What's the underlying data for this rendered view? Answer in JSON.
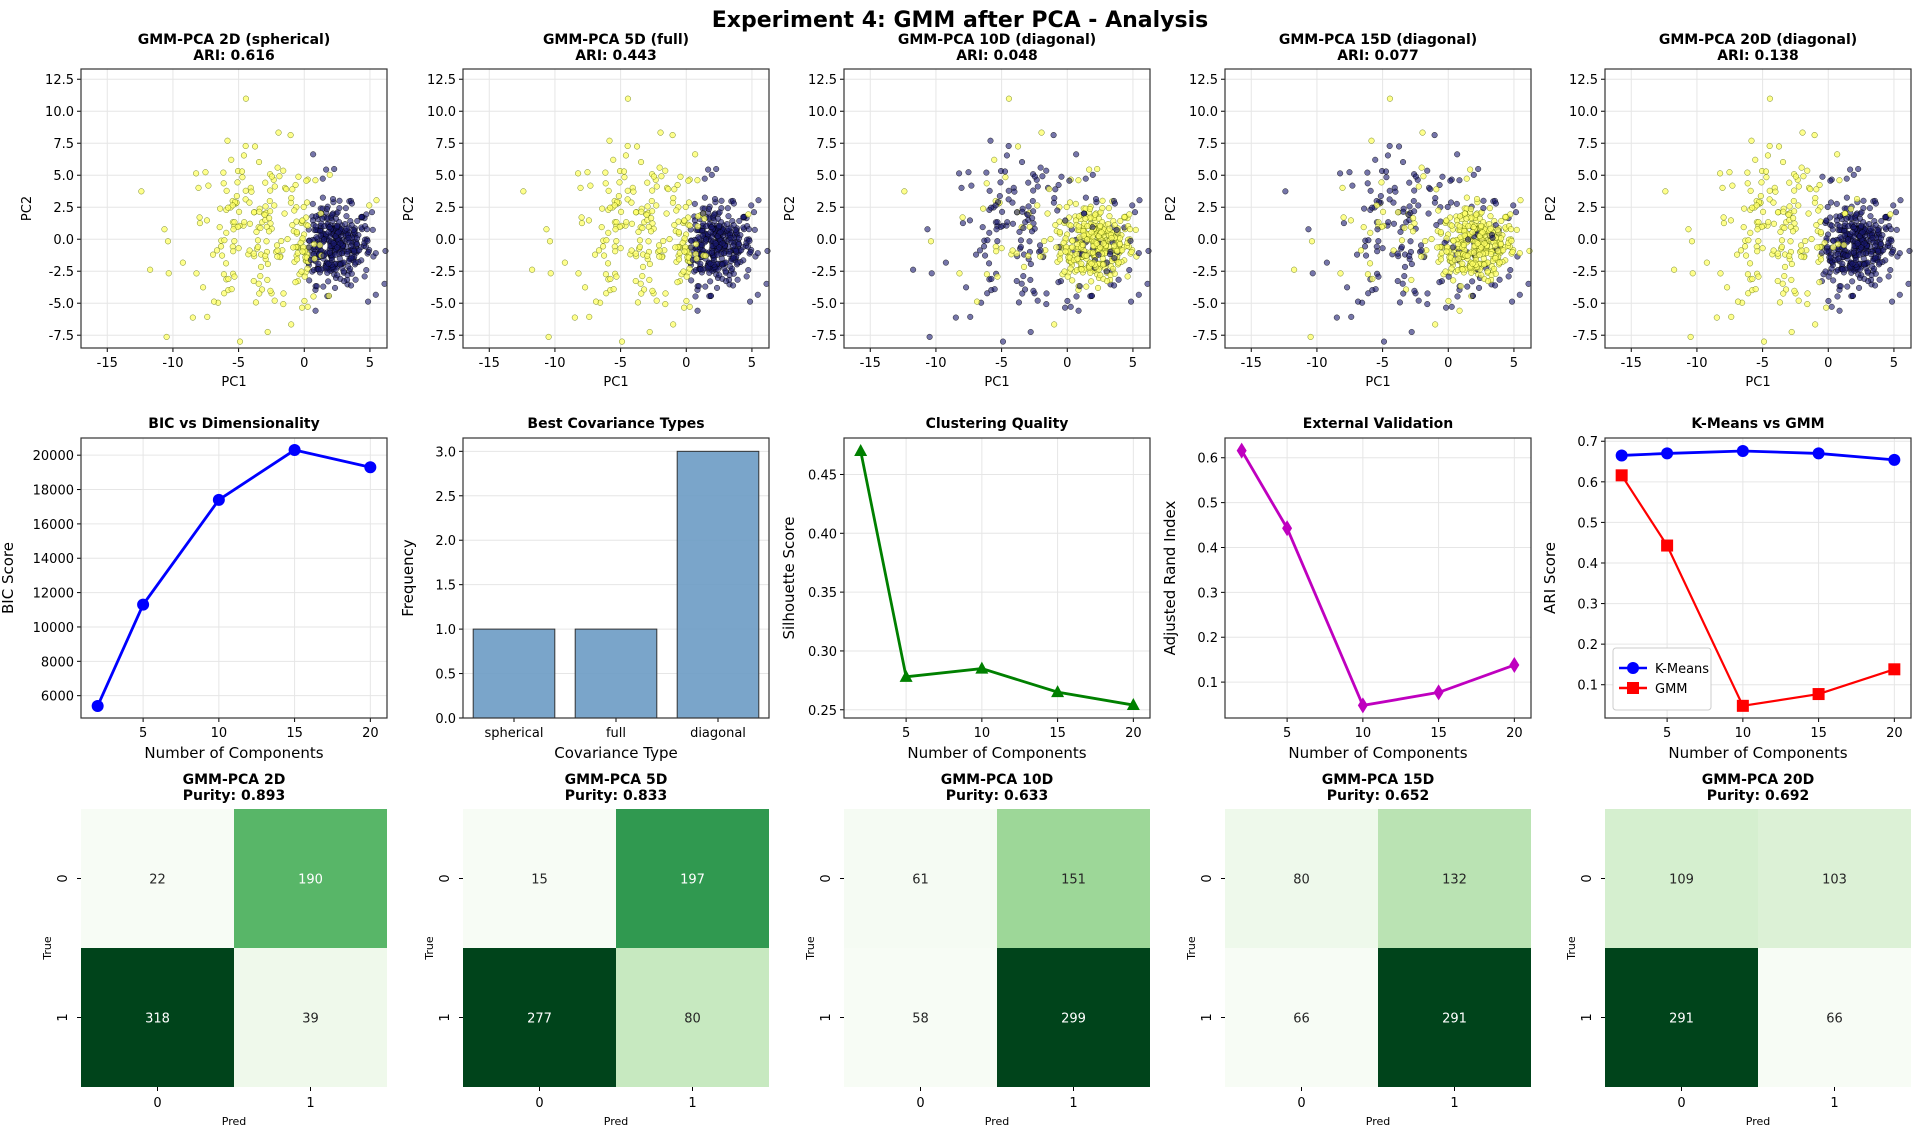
{
  "title": "Experiment 4: GMM after PCA - Analysis",
  "chart_data": [
    {
      "type": "scatter",
      "title": "GMM-PCA 2D (spherical)",
      "subtitle": "ARI: 0.616",
      "xlabel": "PC1",
      "ylabel": "PC2",
      "xlim": [
        -17,
        6.3
      ],
      "ylim": [
        -8.5,
        13.3
      ],
      "xticks": [
        -15,
        -10,
        -5,
        0,
        5
      ],
      "yticks": [
        -7.5,
        -5.0,
        -2.5,
        0.0,
        2.5,
        5.0,
        7.5,
        10.0,
        12.5
      ],
      "grid": true,
      "cluster_colors": [
        "#ffff66",
        "#191970"
      ]
    },
    {
      "type": "scatter",
      "title": "GMM-PCA 5D (full)",
      "subtitle": "ARI: 0.443",
      "xlabel": "PC1",
      "ylabel": "PC2",
      "xlim": [
        -17,
        6.3
      ],
      "ylim": [
        -8.5,
        13.3
      ],
      "xticks": [
        -15,
        -10,
        -5,
        0,
        5
      ],
      "yticks": [
        -7.5,
        -5.0,
        -2.5,
        0.0,
        2.5,
        5.0,
        7.5,
        10.0,
        12.5
      ],
      "grid": true,
      "cluster_colors": [
        "#ffff66",
        "#191970"
      ]
    },
    {
      "type": "scatter",
      "title": "GMM-PCA 10D (diagonal)",
      "subtitle": "ARI: 0.048",
      "xlabel": "PC1",
      "ylabel": "PC2",
      "xlim": [
        -17,
        6.3
      ],
      "ylim": [
        -8.5,
        13.3
      ],
      "xticks": [
        -15,
        -10,
        -5,
        0,
        5
      ],
      "yticks": [
        -7.5,
        -5.0,
        -2.5,
        0.0,
        2.5,
        5.0,
        7.5,
        10.0,
        12.5
      ],
      "grid": true,
      "cluster_colors": [
        "#ffff66",
        "#191970"
      ]
    },
    {
      "type": "scatter",
      "title": "GMM-PCA 15D (diagonal)",
      "subtitle": "ARI: 0.077",
      "xlabel": "PC1",
      "ylabel": "PC2",
      "xlim": [
        -17,
        6.3
      ],
      "ylim": [
        -8.5,
        13.3
      ],
      "xticks": [
        -15,
        -10,
        -5,
        0,
        5
      ],
      "yticks": [
        -7.5,
        -5.0,
        -2.5,
        0.0,
        2.5,
        5.0,
        7.5,
        10.0,
        12.5
      ],
      "grid": true,
      "cluster_colors": [
        "#ffff66",
        "#191970"
      ]
    },
    {
      "type": "scatter",
      "title": "GMM-PCA 20D (diagonal)",
      "subtitle": "ARI: 0.138",
      "xlabel": "PC1",
      "ylabel": "PC2",
      "xlim": [
        -17,
        6.3
      ],
      "ylim": [
        -8.5,
        13.3
      ],
      "xticks": [
        -15,
        -10,
        -5,
        0,
        5
      ],
      "yticks": [
        -7.5,
        -5.0,
        -2.5,
        0.0,
        2.5,
        5.0,
        7.5,
        10.0,
        12.5
      ],
      "grid": true,
      "cluster_colors": [
        "#ffff66",
        "#191970"
      ]
    },
    {
      "type": "line",
      "title": "BIC vs Dimensionality",
      "xlabel": "Number of Components",
      "ylabel": "BIC Score",
      "x": [
        2,
        5,
        10,
        15,
        20
      ],
      "series": [
        {
          "values": [
            5400,
            11300,
            17400,
            20300,
            19300
          ],
          "color": "#0000ff",
          "marker": "circle"
        }
      ],
      "xlim": [
        0.9,
        21.1
      ],
      "ylim": [
        4700,
        21000
      ],
      "xticks": [
        5,
        10,
        15,
        20
      ],
      "yticks": [
        6000,
        8000,
        10000,
        12000,
        14000,
        16000,
        18000,
        20000
      ],
      "grid": true
    },
    {
      "type": "bar",
      "title": "Best Covariance Types",
      "xlabel": "Covariance Type",
      "ylabel": "Frequency",
      "categories": [
        "spherical",
        "full",
        "diagonal"
      ],
      "values": [
        1,
        1,
        3
      ],
      "color": "#6c9bc4",
      "ylim": [
        0,
        3.15
      ],
      "yticks": [
        0.0,
        0.5,
        1.0,
        1.5,
        2.0,
        2.5,
        3.0
      ],
      "grid": true
    },
    {
      "type": "line",
      "title": "Clustering Quality",
      "xlabel": "Number of Components",
      "ylabel": "Silhouette Score",
      "x": [
        2,
        5,
        10,
        15,
        20
      ],
      "series": [
        {
          "values": [
            0.47,
            0.278,
            0.285,
            0.265,
            0.254
          ],
          "color": "#008000",
          "marker": "triangle"
        }
      ],
      "xlim": [
        0.9,
        21.1
      ],
      "ylim": [
        0.243,
        0.481
      ],
      "xticks": [
        5,
        10,
        15,
        20
      ],
      "yticks": [
        0.25,
        0.3,
        0.35,
        0.4,
        0.45
      ],
      "grid": true
    },
    {
      "type": "line",
      "title": "External Validation",
      "xlabel": "Number of Components",
      "ylabel": "Adjusted Rand Index",
      "x": [
        2,
        5,
        10,
        15,
        20
      ],
      "series": [
        {
          "values": [
            0.616,
            0.443,
            0.048,
            0.077,
            0.138
          ],
          "color": "#bf00bf",
          "marker": "diamond"
        }
      ],
      "xlim": [
        0.9,
        21.1
      ],
      "ylim": [
        0.02,
        0.644
      ],
      "xticks": [
        5,
        10,
        15,
        20
      ],
      "yticks": [
        0.1,
        0.2,
        0.3,
        0.4,
        0.5,
        0.6
      ],
      "grid": true
    },
    {
      "type": "line",
      "title": "K-Means vs GMM",
      "xlabel": "Number of Components",
      "ylabel": "ARI Score",
      "x": [
        2,
        5,
        10,
        15,
        20
      ],
      "series": [
        {
          "name": "K-Means",
          "values": [
            0.665,
            0.67,
            0.676,
            0.67,
            0.654
          ],
          "color": "#0000ff",
          "marker": "circle"
        },
        {
          "name": "GMm",
          "values": [
            0.616,
            0.443,
            0.048,
            0.077,
            0.138
          ],
          "color": "#ff0000",
          "marker": "square"
        }
      ],
      "xlim": [
        0.9,
        21.1
      ],
      "ylim": [
        0.018,
        0.708
      ],
      "xticks": [
        5,
        10,
        15,
        20
      ],
      "yticks": [
        0.1,
        0.2,
        0.3,
        0.4,
        0.5,
        0.6,
        0.7
      ],
      "grid": true,
      "legend": "lower-left"
    },
    {
      "type": "heatmap",
      "title": "GMM-PCA 2D",
      "subtitle": "Purity: 0.893",
      "xlabel": "Pred",
      "ylabel": "True",
      "xticks": [
        "0",
        "1"
      ],
      "yticks": [
        "0",
        "1"
      ],
      "values": [
        [
          22,
          190
        ],
        [
          318,
          39
        ]
      ],
      "colormap": "Greens"
    },
    {
      "type": "heatmap",
      "title": "GMM-PCA 5D",
      "subtitle": "Purity: 0.833",
      "xlabel": "Pred",
      "ylabel": "True",
      "xticks": [
        "0",
        "1"
      ],
      "yticks": [
        "0",
        "1"
      ],
      "values": [
        [
          15,
          197
        ],
        [
          277,
          80
        ]
      ],
      "colormap": "Greens"
    },
    {
      "type": "heatmap",
      "title": "GMM-PCA 10D",
      "subtitle": "Purity: 0.633",
      "xlabel": "Pred",
      "ylabel": "True",
      "xticks": [
        "0",
        "1"
      ],
      "yticks": [
        "0",
        "1"
      ],
      "values": [
        [
          61,
          151
        ],
        [
          58,
          299
        ]
      ],
      "colormap": "Greens"
    },
    {
      "type": "heatmap",
      "title": "GMM-PCA 15D",
      "subtitle": "Purity: 0.652",
      "xlabel": "Pred",
      "ylabel": "True",
      "xticks": [
        "0",
        "1"
      ],
      "yticks": [
        "0",
        "1"
      ],
      "values": [
        [
          80,
          132
        ],
        [
          66,
          291
        ]
      ],
      "colormap": "Greens"
    },
    {
      "type": "heatmap",
      "title": "GMM-PCA 20D",
      "subtitle": "Purity: 0.692",
      "xlabel": "Pred",
      "ylabel": "True",
      "xticks": [
        "0",
        "1"
      ],
      "yticks": [
        "0",
        "1"
      ],
      "values": [
        [
          109,
          103
        ],
        [
          291,
          66
        ]
      ],
      "colormap": "Greens"
    }
  ]
}
